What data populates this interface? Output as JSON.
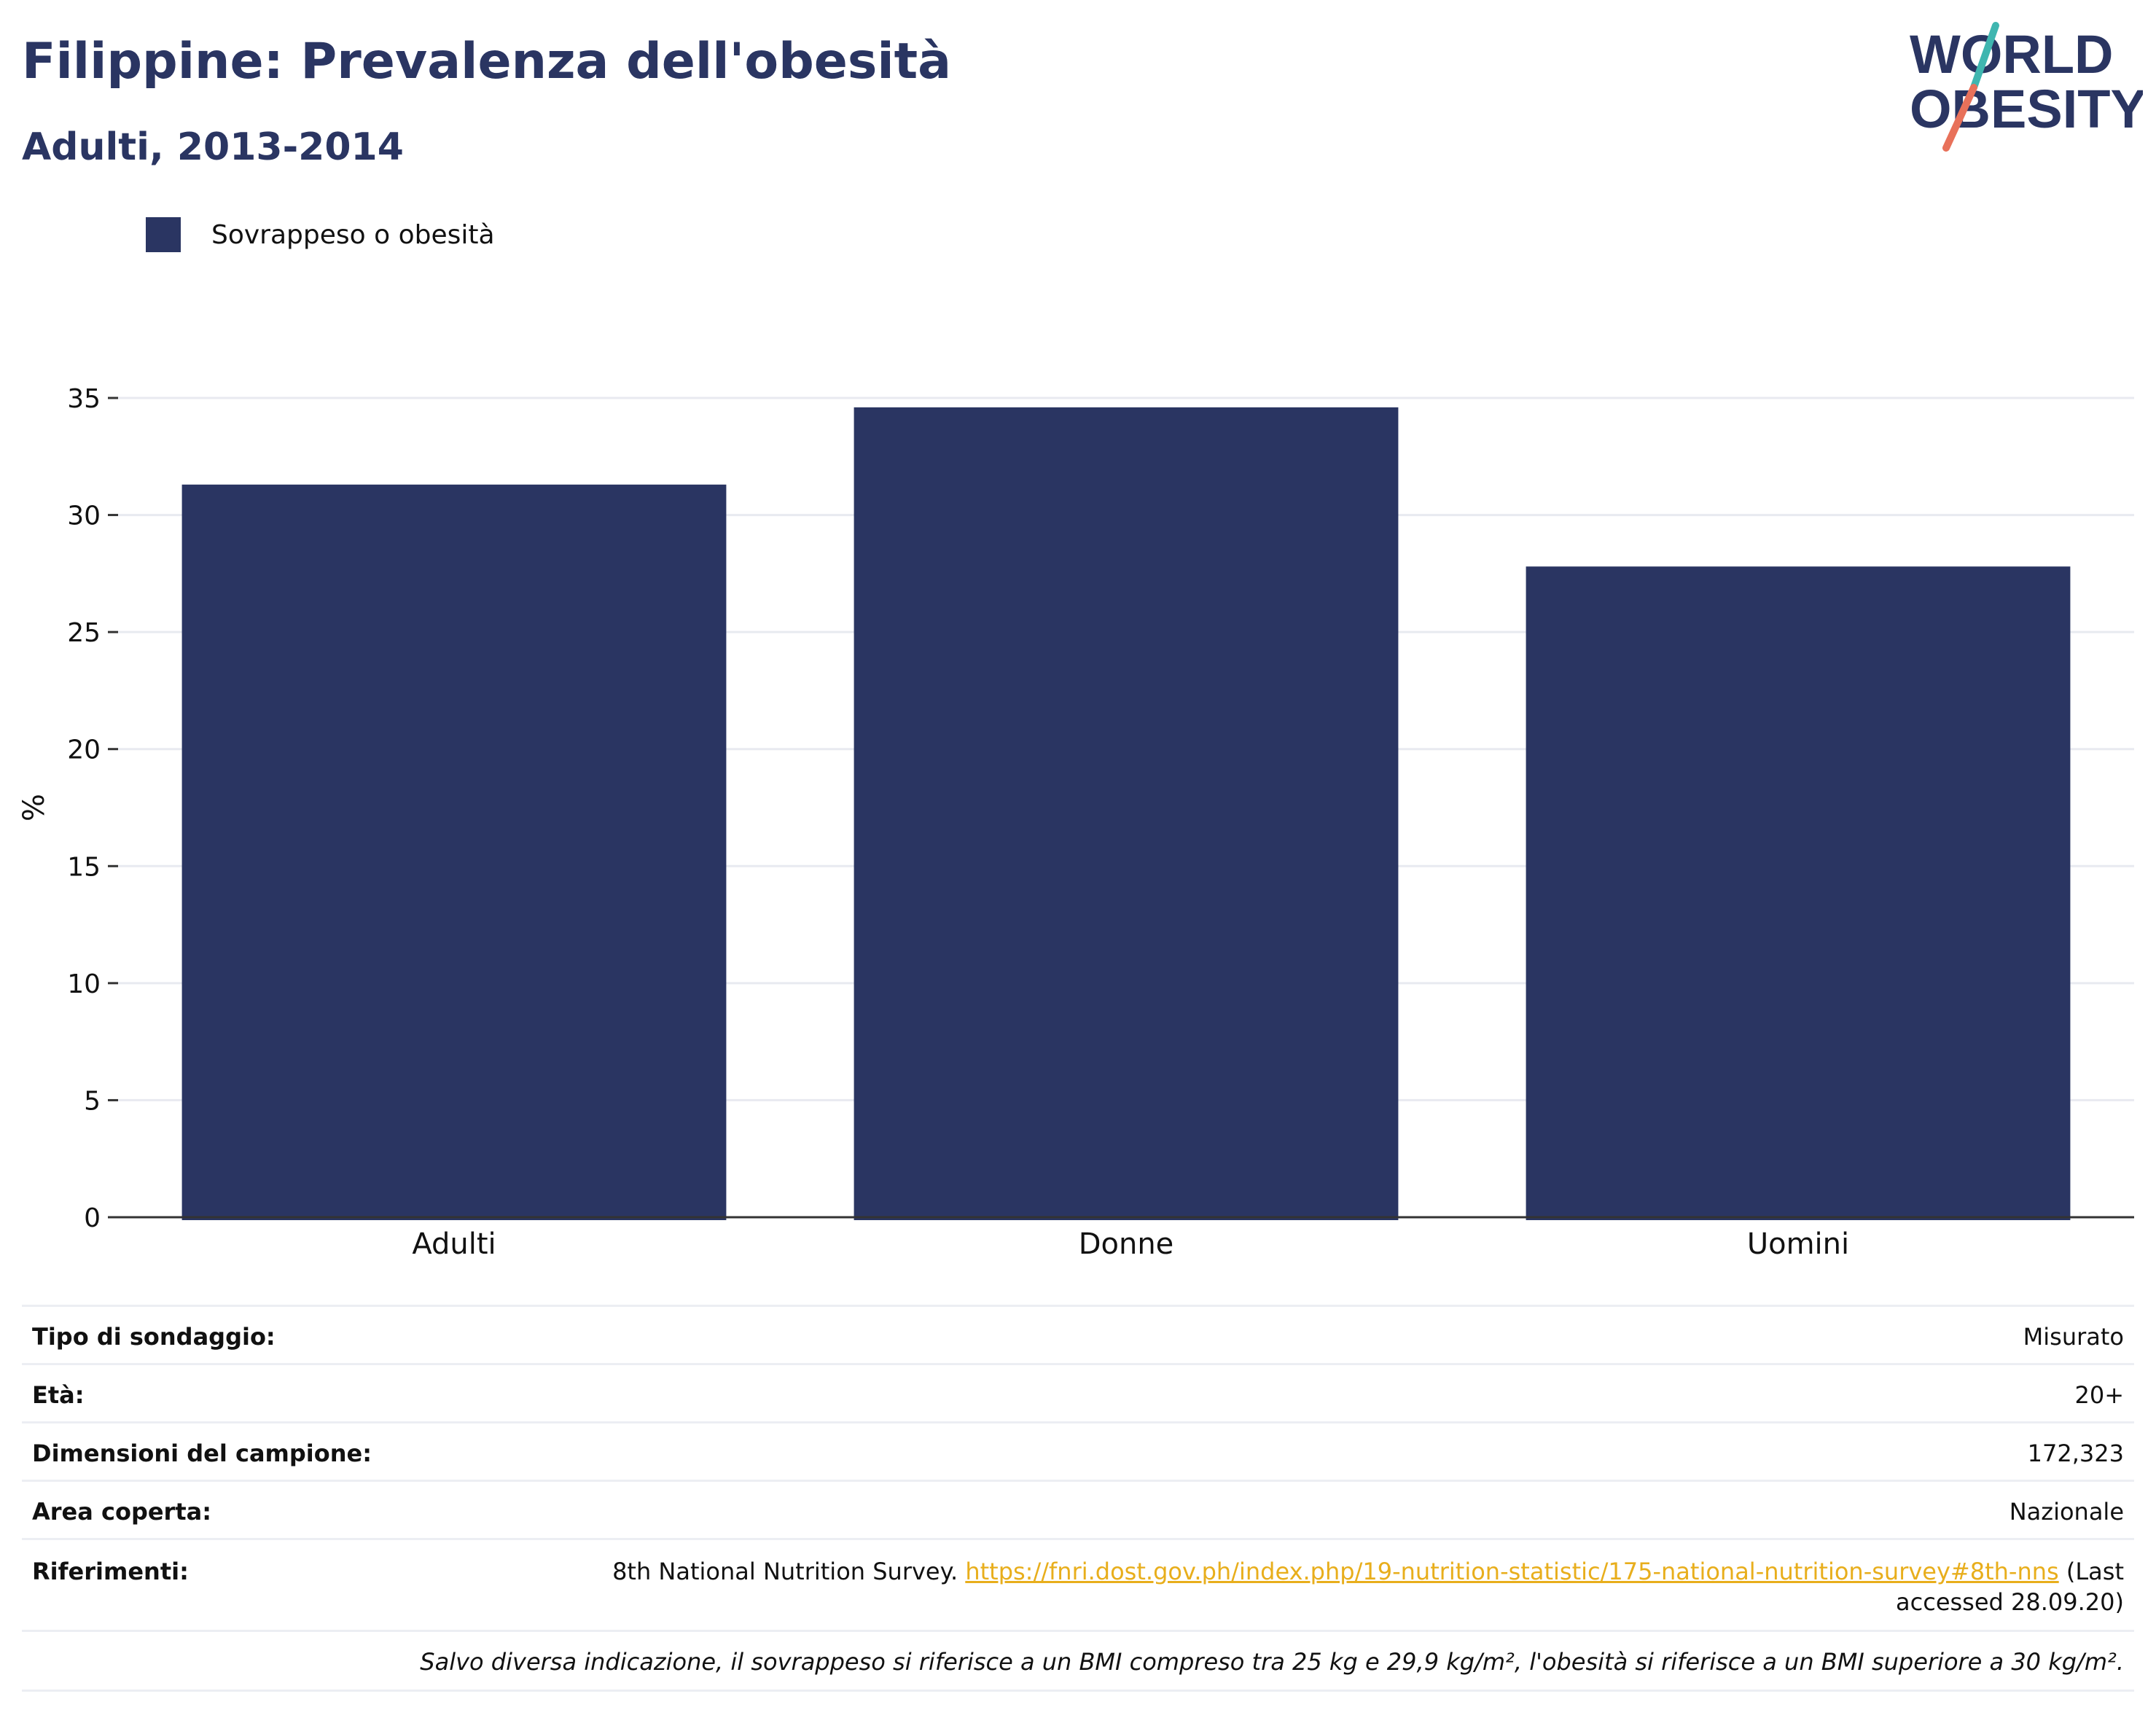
{
  "header": {
    "title": "Filippine: Prevalenza dell'obesità",
    "subtitle": "Adulti, 2013-2014"
  },
  "logo": {
    "line1": "WORLD",
    "line2": "OBESITY",
    "colors": {
      "text": "#2a3562",
      "slash_top": "#3fb6b0",
      "slash_bottom": "#e8715a"
    }
  },
  "chart_data": {
    "type": "bar",
    "categories": [
      "Adulti",
      "Donne",
      "Uomini"
    ],
    "series": [
      {
        "name": "Sovrappeso o obesità",
        "values": [
          31.3,
          34.6,
          27.8
        ],
        "color": "#2a3562"
      }
    ],
    "title": "",
    "xlabel": "",
    "ylabel": "%",
    "ylim": [
      0,
      35
    ],
    "yticks": [
      0,
      5,
      10,
      15,
      20,
      25,
      30,
      35
    ],
    "grid": true,
    "legend": "top-left"
  },
  "info": {
    "survey_type_label": "Tipo di sondaggio:",
    "survey_type_value": "Misurato",
    "age_label": "Età:",
    "age_value": "20+",
    "sample_label": "Dimensioni del campione:",
    "sample_value": "172,323",
    "area_label": "Area coperta:",
    "area_value": "Nazionale",
    "refs_label": "Riferimenti:",
    "refs_text": "8th National Nutrition Survey.",
    "refs_link": "https://fnri.dost.gov.ph/index.php/19-nutrition-statistic/175-national-nutrition-survey#8th-nns",
    "refs_suffix1": "(Last",
    "refs_suffix2": "accessed 28.09.20)",
    "note": "Salvo diversa indicazione, il sovrappeso si riferisce a un BMI compreso tra 25 kg e 29,9 kg/m², l'obesità si riferisce a un BMI superiore a 30 kg/m²."
  }
}
